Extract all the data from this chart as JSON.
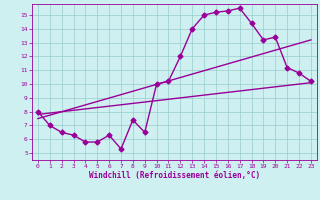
{
  "xlabel": "Windchill (Refroidissement éolien,°C)",
  "bg_color": "#cff0f0",
  "grid_color": "#99cccc",
  "line_color": "#990099",
  "x_ticks": [
    0,
    1,
    2,
    3,
    4,
    5,
    6,
    7,
    8,
    9,
    10,
    11,
    12,
    13,
    14,
    15,
    16,
    17,
    18,
    19,
    20,
    21,
    22,
    23
  ],
  "y_ticks": [
    5,
    6,
    7,
    8,
    9,
    10,
    11,
    12,
    13,
    14,
    15
  ],
  "xlim": [
    -0.5,
    23.5
  ],
  "ylim": [
    4.5,
    15.8
  ],
  "line1_x": [
    0,
    1,
    2,
    3,
    4,
    5,
    6,
    7,
    8,
    9,
    10,
    11,
    12,
    13,
    14,
    15,
    16,
    17,
    18,
    19,
    20,
    21,
    22,
    23
  ],
  "line1_y": [
    8.0,
    7.0,
    6.5,
    6.3,
    5.8,
    5.8,
    6.3,
    5.3,
    7.4,
    6.5,
    10.0,
    10.2,
    12.0,
    14.0,
    15.0,
    15.2,
    15.3,
    15.5,
    14.4,
    13.2,
    13.4,
    11.2,
    10.8,
    10.2
  ],
  "line2_x": [
    0,
    23
  ],
  "line2_y": [
    7.8,
    10.1
  ],
  "line3_x": [
    0,
    23
  ],
  "line3_y": [
    7.5,
    13.2
  ],
  "marker": "D",
  "markersize": 2.5,
  "linewidth": 1.0,
  "tick_fontsize": 4.5,
  "xlabel_fontsize": 5.5
}
